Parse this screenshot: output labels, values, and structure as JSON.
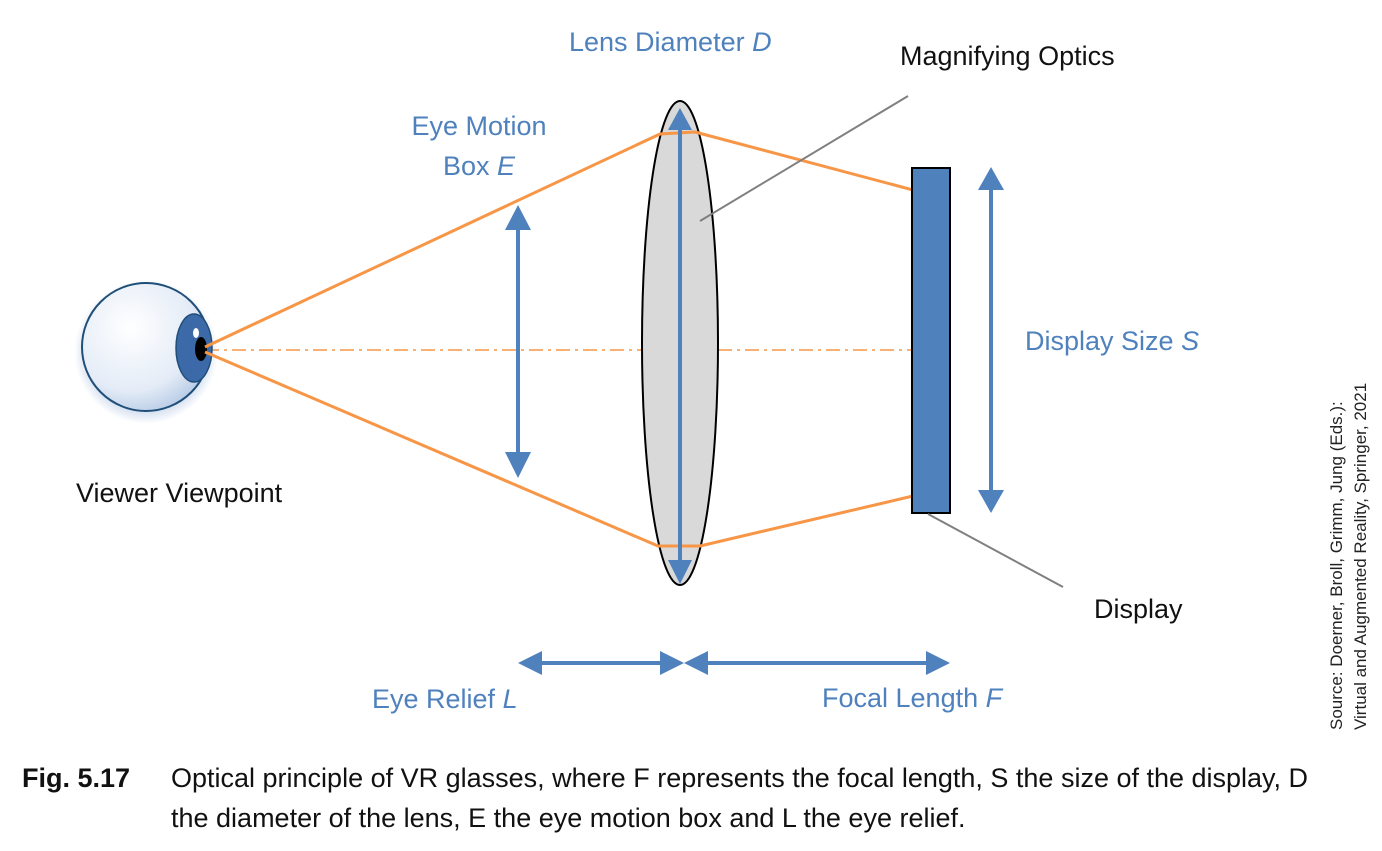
{
  "labels": {
    "lens_diameter": "Lens Diameter",
    "lens_diameter_var": "D",
    "magnifying_optics": "Magnifying Optics",
    "eye_motion_line1": "Eye Motion",
    "eye_motion_line2": "Box",
    "eye_motion_var": "E",
    "display_size": "Display Size",
    "display_size_var": "S",
    "viewer_viewpoint": "Viewer Viewpoint",
    "display": "Display",
    "eye_relief": "Eye Relief",
    "eye_relief_var": "L",
    "focal_length": "Focal Length",
    "focal_length_var": "F"
  },
  "source": {
    "line1": "Source: Doerner, Broll, Grimm, Jung (Eds.):",
    "line2": "Virtual and Augmented Reality, Springer, 2021"
  },
  "caption": {
    "label": "Fig. 5.17",
    "text": "Optical principle of VR glasses, where F represents the focal length, S the size of the display, D the diameter of the lens, E the eye motion box and L the eye relief."
  },
  "colors": {
    "accent_blue": "#4f81bd",
    "ray_orange": "#f79646",
    "lens_fill": "#d9d9d9",
    "display_fill": "#4f81bd"
  }
}
